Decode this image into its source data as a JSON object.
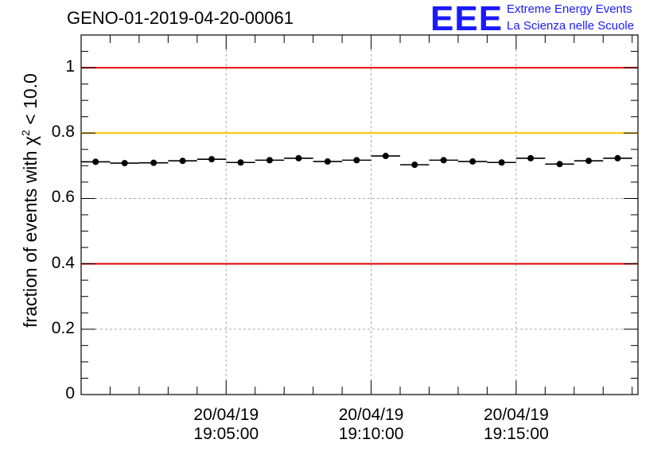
{
  "title": "GENO-01-2019-04-20-00061",
  "logo": {
    "mark": "EEE",
    "line1": "Extreme Energy Events",
    "line2": "La Scienza nelle Scuole"
  },
  "chart_data": {
    "type": "scatter",
    "title": "GENO-01-2019-04-20-00061",
    "ylabel_prefix": "fraction of events with χ",
    "ylabel_sup": "2",
    "ylabel_suffix": " < 10.0",
    "xlabel": "",
    "ylim": [
      0,
      1.1
    ],
    "y_ticks": [
      {
        "v": 0,
        "label": "0"
      },
      {
        "v": 0.2,
        "label": "0.2"
      },
      {
        "v": 0.4,
        "label": "0.4"
      },
      {
        "v": 0.6,
        "label": "0.6"
      },
      {
        "v": 0.8,
        "label": "0.8"
      },
      {
        "v": 1.0,
        "label": "1"
      }
    ],
    "x_start_min": 0,
    "x_end_min": 19.2,
    "x_ticks": [
      {
        "min": 5,
        "date": "20/04/19",
        "time": "19:05:00"
      },
      {
        "min": 10,
        "date": "20/04/19",
        "time": "19:10:00"
      },
      {
        "min": 15,
        "date": "20/04/19",
        "time": "19:15:00"
      }
    ],
    "bin_width_min": 1,
    "bin_centers_min": [
      0.5,
      1.5,
      2.5,
      3.5,
      4.5,
      5.5,
      6.5,
      7.5,
      8.5,
      9.5,
      10.5,
      11.5,
      12.5,
      13.5,
      14.5,
      15.5,
      16.5,
      17.5,
      18.5
    ],
    "values": [
      0.712,
      0.708,
      0.709,
      0.715,
      0.72,
      0.71,
      0.717,
      0.723,
      0.713,
      0.717,
      0.73,
      0.703,
      0.717,
      0.713,
      0.71,
      0.723,
      0.705,
      0.715,
      0.723
    ],
    "reference_lines": [
      {
        "value": 1.0,
        "color": "#e00000"
      },
      {
        "value": 0.8,
        "color": "#ffc000"
      },
      {
        "value": 0.4,
        "color": "#e00000"
      }
    ],
    "grid": true
  }
}
